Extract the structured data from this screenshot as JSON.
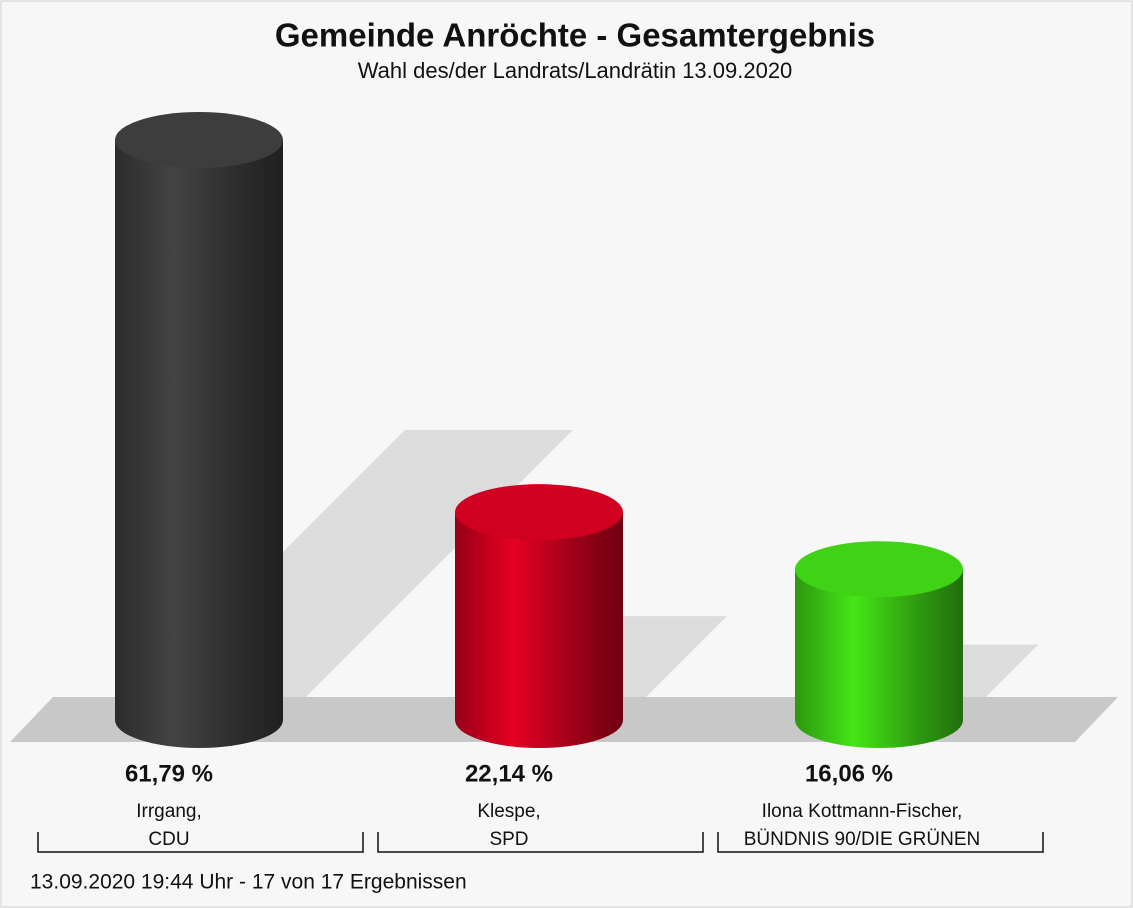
{
  "chart_data": {
    "type": "cylinder-bar",
    "title": "Gemeinde Anröchte - Gesamtergebnis",
    "subtitle": "Wahl des/der Landrats/Landrätin 13.09.2020",
    "categories": [
      [
        "Irrgang,",
        "CDU"
      ],
      [
        "Klespe,",
        "SPD"
      ],
      [
        "Ilona Kottmann-Fischer,",
        "BÜNDNIS 90/DIE GRÜNEN"
      ]
    ],
    "values": [
      61.79,
      22.14,
      16.06
    ],
    "value_labels": [
      "61,79 %",
      "22,14 %",
      "16,06 %"
    ],
    "colors": [
      "#3a3a3a",
      "#c8001e",
      "#3cc814"
    ],
    "footer": "13.09.2020 19:44 Uhr - 17 von 17 Ergebnissen"
  }
}
